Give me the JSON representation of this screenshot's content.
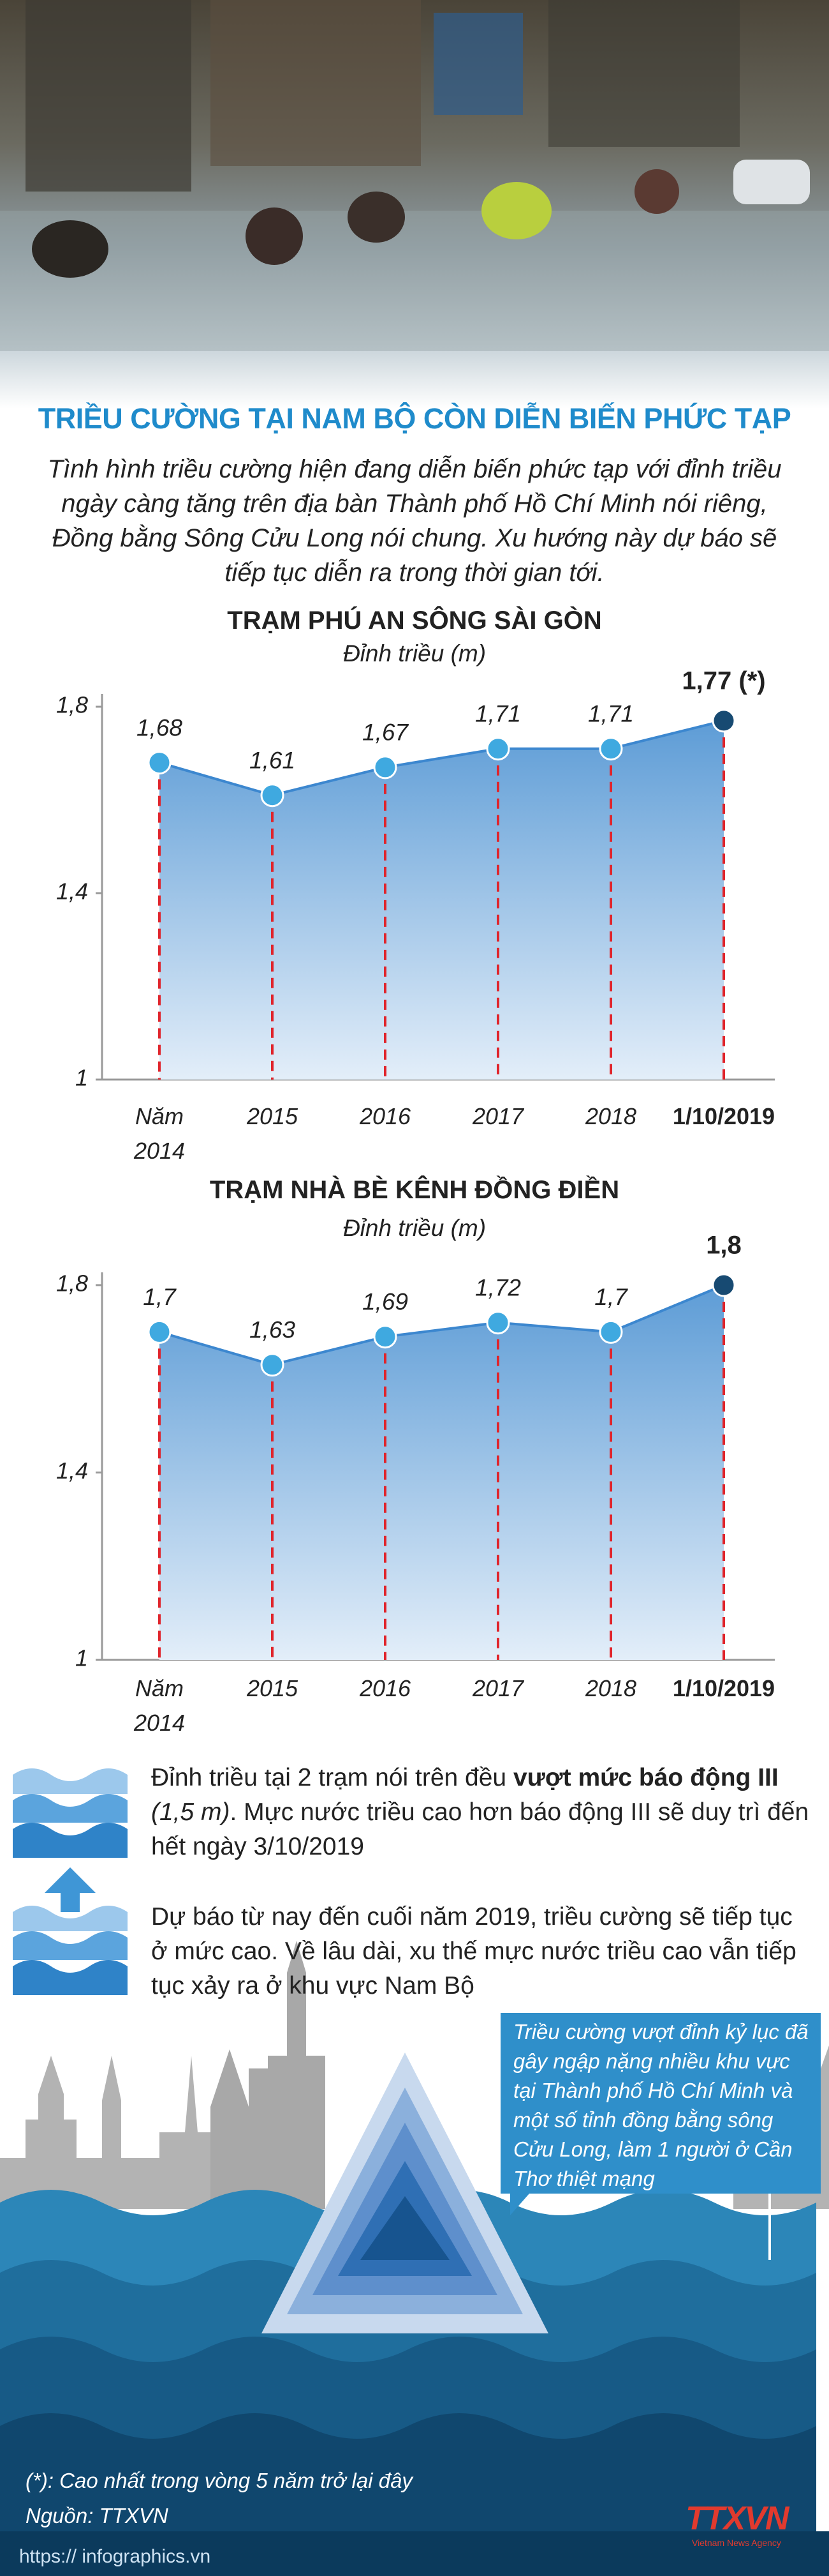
{
  "header": {
    "title": "TRIỀU CƯỜNG TẠI NAM BỘ CÒN DIỄN BIẾN PHỨC TẠP",
    "intro": "Tình hình triều cường hiện đang diễn biến phức tạp với đỉnh triều ngày càng tăng trên địa bàn Thành phố Hồ Chí Minh nói riêng, Đồng bằng Sông Cửu Long nói chung. Xu hướng này dự báo sẽ tiếp tục diễn ra trong thời gian tới."
  },
  "chart_data": [
    {
      "type": "line",
      "title": "TRẠM PHÚ AN SÔNG SÀI GÒN",
      "subtitle": "Đỉnh triều (m)",
      "categories": [
        "Năm 2014",
        "2015",
        "2016",
        "2017",
        "2018",
        "1/10/2019"
      ],
      "values": [
        1.68,
        1.61,
        1.67,
        1.71,
        1.71,
        1.77
      ],
      "value_labels": [
        "1,68",
        "1,61",
        "1,67",
        "1,71",
        "1,71",
        "1,77 (*)"
      ],
      "ylim": [
        1,
        1.8
      ],
      "yticks": [
        1,
        {
          "value": 1.4,
          "label": "1,4"
        },
        {
          "value": 1.8,
          "label": "1,8"
        }
      ],
      "color": "#3fa9e0",
      "highlight_color": "#174a72"
    },
    {
      "type": "line",
      "title": "TRẠM NHÀ BÈ KÊNH ĐỒNG ĐIỀN",
      "subtitle": "Đỉnh triều (m)",
      "categories": [
        "Năm 2014",
        "2015",
        "2016",
        "2017",
        "2018",
        "1/10/2019"
      ],
      "values": [
        1.7,
        1.63,
        1.69,
        1.72,
        1.7,
        1.8
      ],
      "value_labels": [
        "1,7",
        "1,63",
        "1,69",
        "1,72",
        "1,7",
        "1,8"
      ],
      "ylim": [
        1,
        1.8
      ],
      "yticks": [
        1,
        {
          "value": 1.4,
          "label": "1,4"
        },
        {
          "value": 1.8,
          "label": "1,8"
        }
      ],
      "color": "#3fa9e0",
      "highlight_color": "#174a72"
    }
  ],
  "notes": [
    {
      "parts": [
        "Đỉnh triều tại 2 trạm nói trên đều ",
        "vượt mức báo động III",
        " (1,5 m)",
        ". Mực nước triều cao hơn báo động III sẽ duy trì đến hết ngày 3/10/2019"
      ]
    },
    {
      "parts": [
        "Dự báo từ nay đến cuối năm 2019, triều cường sẽ tiếp tục ở mức cao. Về lâu dài, xu thế mực nước triều cao vẫn tiếp tục xảy ra ở khu vực Nam Bộ"
      ]
    }
  ],
  "callout": "Triều cường vượt đỉnh kỷ lục đã gây ngập nặng nhiều khu vực tại Thành phố Hồ Chí Minh và một số tỉnh đồng bằng sông Cửu Long, làm 1 người ở Cần Thơ thiệt mạng",
  "footer": {
    "footnote": "(*): Cao nhất trong vòng 5 năm trở lại đây",
    "source": "Nguồn: TTXVN",
    "url": "https:// infographics.vn",
    "logo": "TTXVN",
    "logo_subtitle": "Vietnam News Agency"
  }
}
